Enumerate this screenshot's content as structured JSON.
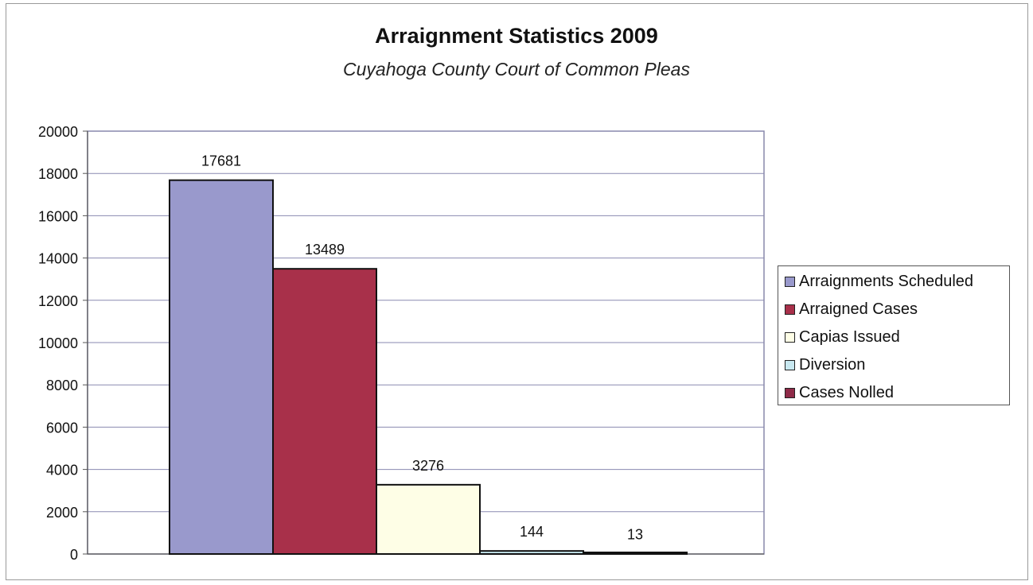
{
  "chart_data": {
    "type": "bar",
    "title": "Arraignment Statistics 2009",
    "subtitle": "Cuyahoga County Court of Common Pleas",
    "ylim": [
      0,
      20000
    ],
    "yticks": [
      0,
      2000,
      4000,
      6000,
      8000,
      10000,
      12000,
      14000,
      16000,
      18000,
      20000
    ],
    "grid": true,
    "legend_position": "right",
    "series": [
      {
        "name": "Arraignments Scheduled",
        "value": 17681,
        "color": "#9999cc"
      },
      {
        "name": "Arraigned Cases",
        "value": 13489,
        "color": "#a8304a"
      },
      {
        "name": "Capias Issued",
        "value": 3276,
        "color": "#fefee6"
      },
      {
        "name": "Diversion",
        "value": 144,
        "color": "#c8e8f0"
      },
      {
        "name": "Cases Nolled",
        "value": 13,
        "color": "#8e2a48"
      }
    ]
  }
}
